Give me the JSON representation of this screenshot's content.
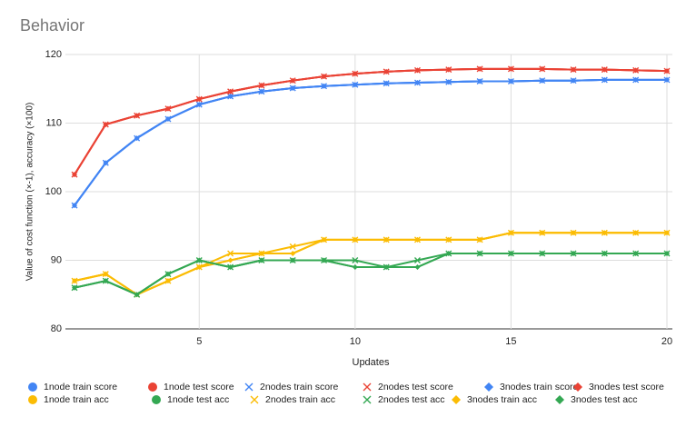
{
  "chart_data": {
    "type": "line",
    "title": "Behavior",
    "x_label": "Updates",
    "y_label": "Value of cost function (×-1), accuracy (×100)",
    "x": [
      1,
      2,
      3,
      4,
      5,
      6,
      7,
      8,
      9,
      10,
      11,
      12,
      13,
      14,
      15,
      16,
      17,
      18,
      19,
      20
    ],
    "xlim": [
      1,
      20
    ],
    "xticks": [
      5,
      10,
      15,
      20
    ],
    "ylim": [
      80,
      120
    ],
    "yticks": [
      80,
      90,
      100,
      110,
      120
    ],
    "grid": true,
    "legend": "bottom",
    "series": [
      {
        "name": "1node train score",
        "color": "#4285f4",
        "marker": "circle",
        "values": [
          98,
          104.2,
          107.8,
          110.6,
          112.7,
          113.9,
          114.6,
          115.1,
          115.4,
          115.6,
          115.8,
          115.9,
          116,
          116.1,
          116.1,
          116.2,
          116.2,
          116.3,
          116.3,
          116.3
        ]
      },
      {
        "name": "1node test score",
        "color": "#ea4335",
        "marker": "circle",
        "values": [
          102.5,
          109.8,
          111.1,
          112.1,
          113.5,
          114.6,
          115.5,
          116.2,
          116.8,
          117.2,
          117.5,
          117.7,
          117.8,
          117.9,
          117.9,
          117.9,
          117.8,
          117.8,
          117.7,
          117.6
        ]
      },
      {
        "name": "2nodes train score",
        "color": "#4285f4",
        "marker": "x",
        "values": [
          98,
          104.2,
          107.8,
          110.6,
          112.7,
          113.9,
          114.6,
          115.1,
          115.4,
          115.6,
          115.8,
          115.9,
          116,
          116.1,
          116.1,
          116.2,
          116.2,
          116.3,
          116.3,
          116.3
        ]
      },
      {
        "name": "2nodes test score",
        "color": "#ea4335",
        "marker": "x",
        "values": [
          102.5,
          109.8,
          111.1,
          112.1,
          113.5,
          114.6,
          115.5,
          116.2,
          116.8,
          117.2,
          117.5,
          117.7,
          117.8,
          117.9,
          117.9,
          117.9,
          117.8,
          117.8,
          117.7,
          117.6
        ]
      },
      {
        "name": "3nodes train score",
        "color": "#4285f4",
        "marker": "diamond",
        "values": [
          98,
          104.2,
          107.8,
          110.6,
          112.7,
          113.9,
          114.6,
          115.1,
          115.4,
          115.6,
          115.8,
          115.9,
          116,
          116.1,
          116.1,
          116.2,
          116.2,
          116.3,
          116.3,
          116.3
        ]
      },
      {
        "name": "3nodes test score",
        "color": "#ea4335",
        "marker": "diamond",
        "values": [
          102.5,
          109.8,
          111.1,
          112.1,
          113.5,
          114.6,
          115.5,
          116.2,
          116.8,
          117.2,
          117.5,
          117.7,
          117.8,
          117.9,
          117.9,
          117.9,
          117.8,
          117.8,
          117.7,
          117.6
        ]
      },
      {
        "name": "1node train acc",
        "color": "#fbbc04",
        "marker": "circle",
        "values": [
          87,
          88,
          85,
          87,
          89,
          90,
          91,
          91,
          93,
          93,
          93,
          93,
          93,
          93,
          94,
          94,
          94,
          94,
          94,
          94
        ]
      },
      {
        "name": "1node test acc",
        "color": "#34a853",
        "marker": "circle",
        "values": [
          86,
          87,
          85,
          88,
          90,
          89,
          90,
          90,
          90,
          89,
          89,
          89,
          91,
          91,
          91,
          91,
          91,
          91,
          91,
          91
        ]
      },
      {
        "name": "2nodes train acc",
        "color": "#fbbc04",
        "marker": "x",
        "values": [
          87,
          88,
          85,
          87,
          89,
          91,
          91,
          92,
          93,
          93,
          93,
          93,
          93,
          93,
          94,
          94,
          94,
          94,
          94,
          94
        ]
      },
      {
        "name": "2nodes test acc",
        "color": "#34a853",
        "marker": "x",
        "values": [
          86,
          87,
          85,
          88,
          90,
          89,
          90,
          90,
          90,
          90,
          89,
          90,
          91,
          91,
          91,
          91,
          91,
          91,
          91,
          91
        ]
      },
      {
        "name": "3nodes train acc",
        "color": "#fbbc04",
        "marker": "diamond",
        "values": [
          87,
          88,
          85,
          87,
          89,
          90,
          91,
          91,
          93,
          93,
          93,
          93,
          93,
          93,
          94,
          94,
          94,
          94,
          94,
          94
        ]
      },
      {
        "name": "3nodes test acc",
        "color": "#34a853",
        "marker": "diamond",
        "values": [
          86,
          87,
          85,
          88,
          90,
          89,
          90,
          90,
          90,
          89,
          89,
          89,
          91,
          91,
          91,
          91,
          91,
          91,
          91,
          91
        ]
      }
    ]
  }
}
